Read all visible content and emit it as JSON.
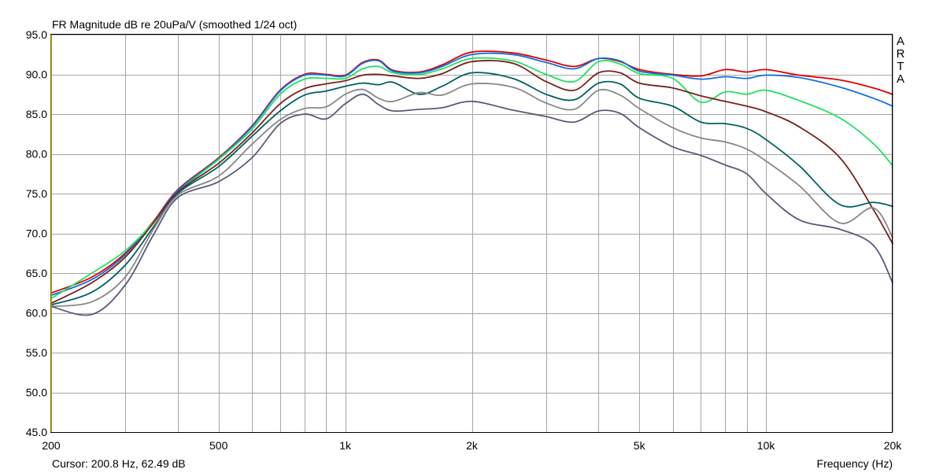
{
  "chart_data": {
    "type": "line",
    "title": "FR Magnitude dB re 20uPa/V (smoothed 1/24 oct)",
    "xlabel": "Frequency (Hz)",
    "ylabel": "",
    "x_scale": "log",
    "xlim": [
      200,
      20000
    ],
    "ylim": [
      45,
      95
    ],
    "grid": true,
    "legend": "none",
    "cursor_readout": "Cursor: 200.8 Hz, 62.49 dB",
    "side_label": [
      "A",
      "R",
      "T",
      "A"
    ],
    "x_ticks": [
      {
        "value": 200,
        "label": "200"
      },
      {
        "value": 500,
        "label": "500"
      },
      {
        "value": 1000,
        "label": "1k"
      },
      {
        "value": 2000,
        "label": "2k"
      },
      {
        "value": 5000,
        "label": "5k"
      },
      {
        "value": 10000,
        "label": "10k"
      },
      {
        "value": 20000,
        "label": "20k"
      }
    ],
    "x_minor_grid": [
      300,
      400,
      600,
      700,
      800,
      900,
      3000,
      4000,
      6000,
      7000,
      8000,
      9000
    ],
    "y_ticks": [
      {
        "value": 45,
        "label": "45.0"
      },
      {
        "value": 50,
        "label": "50.0"
      },
      {
        "value": 55,
        "label": "55.0"
      },
      {
        "value": 60,
        "label": "60.0"
      },
      {
        "value": 65,
        "label": "65.0"
      },
      {
        "value": 70,
        "label": "70.0"
      },
      {
        "value": 75,
        "label": "75.0"
      },
      {
        "value": 80,
        "label": "80.0"
      },
      {
        "value": 85,
        "label": "85.0"
      },
      {
        "value": 90,
        "label": "90.0"
      },
      {
        "value": 95,
        "label": "95.0"
      }
    ],
    "x": [
      200,
      250,
      300,
      350,
      400,
      500,
      600,
      700,
      800,
      900,
      1000,
      1100,
      1200,
      1300,
      1500,
      1700,
      2000,
      2500,
      3000,
      3500,
      4000,
      4500,
      5000,
      6000,
      7000,
      8000,
      9000,
      10000,
      12000,
      15000,
      18000,
      20000
    ],
    "series": [
      {
        "color": "#e00000",
        "values": [
          62.5,
          64.5,
          67.5,
          71.5,
          75.5,
          79.5,
          83.5,
          88.0,
          90.0,
          90.0,
          89.9,
          91.5,
          91.8,
          90.5,
          90.3,
          91.2,
          92.8,
          92.7,
          91.8,
          91.0,
          92.0,
          91.6,
          90.6,
          90.0,
          89.8,
          90.6,
          90.3,
          90.6,
          89.9,
          89.3,
          88.3,
          87.5
        ]
      },
      {
        "color": "#1070e0",
        "values": [
          62.2,
          64.2,
          67.3,
          71.4,
          75.4,
          79.4,
          83.4,
          87.9,
          89.9,
          89.9,
          89.8,
          91.4,
          91.7,
          90.4,
          90.2,
          91.0,
          92.5,
          92.5,
          91.5,
          90.7,
          92.0,
          91.7,
          90.4,
          89.9,
          89.4,
          89.7,
          89.5,
          89.9,
          89.6,
          88.4,
          87.0,
          86.0
        ]
      },
      {
        "color": "#22e060",
        "values": [
          61.8,
          65.0,
          67.8,
          71.4,
          75.2,
          79.3,
          83.1,
          87.5,
          89.4,
          89.5,
          89.5,
          90.7,
          91.0,
          90.2,
          90.0,
          90.7,
          92.0,
          91.7,
          90.0,
          89.1,
          91.6,
          91.3,
          90.1,
          89.5,
          86.5,
          87.8,
          87.5,
          88.0,
          86.7,
          84.5,
          81.3,
          78.5
        ]
      },
      {
        "color": "#7a2020",
        "values": [
          61.2,
          63.8,
          67.0,
          71.3,
          75.2,
          78.8,
          82.6,
          86.3,
          88.2,
          88.8,
          89.2,
          89.9,
          90.0,
          89.8,
          89.5,
          90.1,
          91.6,
          91.4,
          89.1,
          88.0,
          90.2,
          90.2,
          88.9,
          88.3,
          87.3,
          86.6,
          86.0,
          85.3,
          83.4,
          79.5,
          73.0,
          68.7
        ]
      },
      {
        "color": "#006060",
        "values": [
          61.0,
          62.6,
          66.0,
          70.8,
          75.0,
          78.4,
          82.2,
          85.4,
          87.4,
          87.9,
          88.5,
          88.9,
          88.7,
          89.0,
          87.5,
          88.5,
          90.2,
          89.5,
          87.5,
          86.8,
          88.9,
          88.8,
          87.0,
          86.0,
          84.0,
          83.8,
          83.2,
          81.8,
          78.5,
          73.6,
          73.9,
          73.4
        ]
      },
      {
        "color": "#888888",
        "values": [
          60.8,
          61.4,
          64.5,
          70.5,
          74.8,
          77.2,
          81.2,
          84.3,
          85.7,
          85.9,
          87.5,
          88.1,
          87.0,
          86.6,
          87.7,
          87.4,
          88.8,
          88.4,
          86.4,
          85.6,
          88.0,
          87.4,
          85.7,
          83.3,
          82.0,
          81.5,
          80.6,
          79.1,
          76.0,
          71.3,
          73.2,
          69.5
        ]
      },
      {
        "color": "#5a5a78",
        "values": [
          60.8,
          59.8,
          63.5,
          69.8,
          74.5,
          76.5,
          79.5,
          83.8,
          85.0,
          84.4,
          86.3,
          87.5,
          86.2,
          85.4,
          85.6,
          85.8,
          86.6,
          85.5,
          84.7,
          84.0,
          85.4,
          85.1,
          83.3,
          80.9,
          79.8,
          78.6,
          77.5,
          75.0,
          71.7,
          70.5,
          68.5,
          63.8
        ]
      }
    ]
  }
}
